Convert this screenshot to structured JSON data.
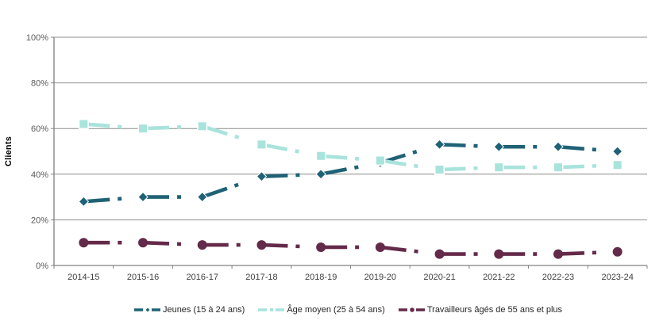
{
  "chart_data": {
    "type": "line",
    "title": "",
    "ylabel": "Clients",
    "xlabel": "",
    "categories": [
      "2014-15",
      "2015-16",
      "2016-17",
      "2017-18",
      "2018-19",
      "2019-20",
      "2020-21",
      "2021-22",
      "2022-23",
      "2023-24"
    ],
    "series": [
      {
        "name": "Jeunes (15 à 24 ans)",
        "color": "#1F6276",
        "marker": "diamond",
        "values": [
          28,
          30,
          30,
          39,
          40,
          45,
          53,
          52,
          52,
          50
        ]
      },
      {
        "name": "Âge moyen (25 à 54 ans)",
        "color": "#A8E3DC",
        "marker": "square",
        "values": [
          62,
          60,
          61,
          53,
          48,
          46,
          42,
          43,
          43,
          44
        ]
      },
      {
        "name": "Travailleurs âgés de 55 ans et plus",
        "color": "#642A49",
        "marker": "circle",
        "values": [
          10,
          10,
          9,
          9,
          8,
          8,
          5,
          5,
          5,
          6
        ]
      }
    ],
    "ylim": [
      0,
      100
    ],
    "y_tick_labels": [
      "0%",
      "20%",
      "40%",
      "60%",
      "80%",
      "100%"
    ],
    "y_tick_values": [
      0,
      20,
      40,
      60,
      80,
      100
    ],
    "grid": "horizontal",
    "legend_position": "bottom",
    "line_style": "dash-dot",
    "colors": {
      "background": "#FFFFFF",
      "axis": "#808080",
      "grid": "#8C8C8C",
      "y_tick_label": "#595959",
      "x_tick_label": "#404040",
      "legend_text": "#262626",
      "ylabel_text": "#000000"
    }
  }
}
